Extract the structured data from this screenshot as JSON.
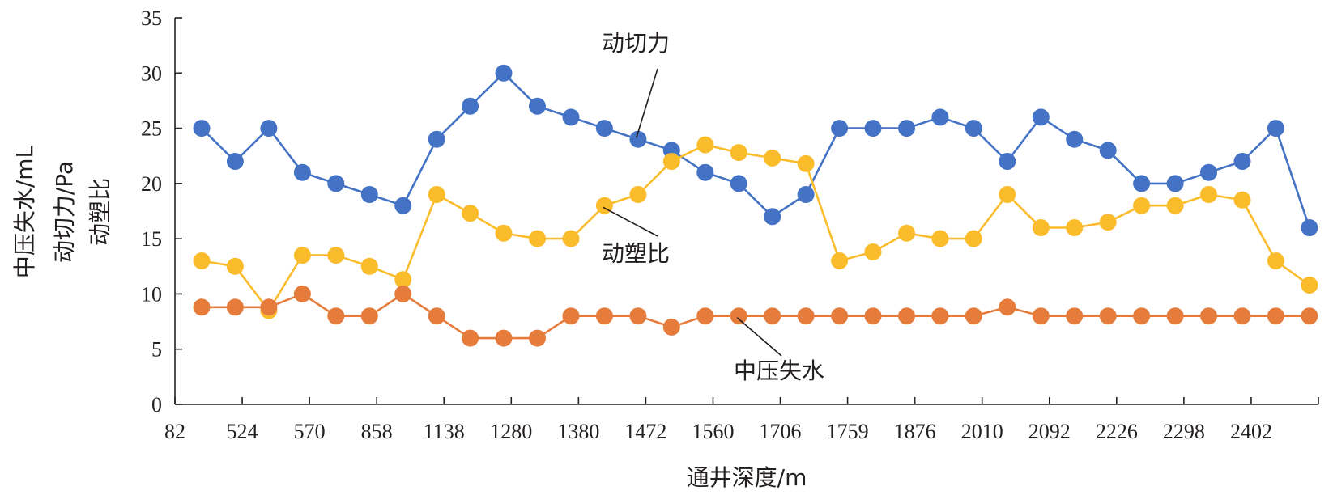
{
  "chart_data": {
    "type": "line",
    "xlabel": "通井深度/m",
    "ylabel_lines": [
      "中压失水/mL",
      "动切力/Pa",
      "动塑比"
    ],
    "ylim": [
      0,
      35
    ],
    "yticks": [
      0,
      5,
      10,
      15,
      20,
      25,
      30,
      35
    ],
    "xtick_labels": [
      "82",
      "524",
      "570",
      "858",
      "1138",
      "1280",
      "1380",
      "1472",
      "1560",
      "1706",
      "1759",
      "1876",
      "2010",
      "2092",
      "2226",
      "2298",
      "2402"
    ],
    "grid": false,
    "legend": "none",
    "series": [
      {
        "name": "动切力",
        "color": "#4472c4",
        "values": [
          25,
          22,
          25,
          21,
          20,
          19,
          18,
          24,
          27,
          30,
          27,
          26,
          25,
          24,
          23,
          21,
          20,
          17,
          19,
          25,
          25,
          25,
          26,
          25,
          22,
          26,
          24,
          23,
          20,
          20,
          21,
          22,
          25,
          16
        ]
      },
      {
        "name": "动塑比",
        "color": "#fbbc2c",
        "values": [
          13,
          12.5,
          8.5,
          13.5,
          13.5,
          12.5,
          11.3,
          19,
          17.3,
          15.5,
          15,
          15,
          18,
          19,
          22,
          23.5,
          22.8,
          22.3,
          21.8,
          13,
          13.8,
          15.5,
          15,
          15,
          19,
          16,
          16,
          16.5,
          18,
          18,
          19,
          18.5,
          13,
          10.8
        ]
      },
      {
        "name": "中压失水",
        "color": "#e67c3c",
        "values": [
          8.8,
          8.8,
          8.8,
          10,
          8,
          8,
          10,
          8,
          6,
          6,
          6,
          8,
          8,
          8,
          7,
          8,
          8,
          8,
          8,
          8,
          8,
          8,
          8,
          8,
          8.8,
          8,
          8,
          8,
          8,
          8,
          8,
          8,
          8,
          8
        ]
      }
    ],
    "annotations": [
      {
        "text": "动切力",
        "series": "动切力",
        "point_index": 13
      },
      {
        "text": "动塑比",
        "series": "动塑比",
        "point_index": 12
      },
      {
        "text": "中压失水",
        "series": "中压失水",
        "point_index": 16
      }
    ]
  }
}
